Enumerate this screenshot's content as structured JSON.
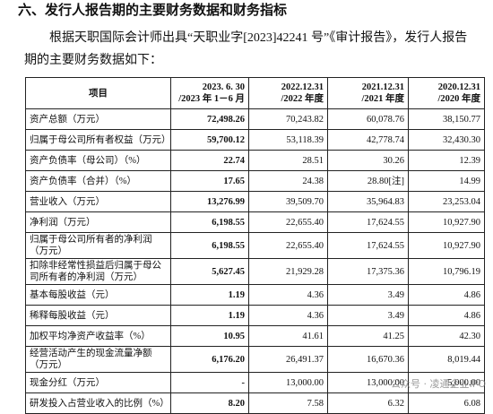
{
  "heading": "六、发行人报告期的主要财务数据和财务指标",
  "intro": "根据天职国际会计师出具“天职业字[2023]42241 号”《审计报告》，发行人报告期的主要财务数据如下：",
  "table": {
    "header": [
      [
        "项目"
      ],
      [
        "2023. 6. 30",
        "/2023 年 1－6 月"
      ],
      [
        "2022.12.31",
        "/2022 年度"
      ],
      [
        "2021.12.31",
        "/2021 年度"
      ],
      [
        "2020.12.31",
        "/2020 年度"
      ]
    ],
    "rows": [
      [
        "资产总额（万元）",
        "72,498.26",
        "70,243.82",
        "60,078.76",
        "38,150.77"
      ],
      [
        "归属于母公司所有者权益（万元）",
        "59,700.12",
        "53,118.39",
        "42,778.74",
        "32,430.30"
      ],
      [
        "资产负债率（母公司）（%）",
        "22.74",
        "28.51",
        "30.26",
        "12.39"
      ],
      [
        "资产负债率（合并）（%）",
        "17.65",
        "24.38",
        "28.80[注]",
        "14.99"
      ],
      [
        "营业收入（万元）",
        "13,276.99",
        "39,509.70",
        "35,964.83",
        "23,253.04"
      ],
      [
        "净利润（万元）",
        "6,198.55",
        "22,655.40",
        "17,624.55",
        "10,927.90"
      ],
      [
        "归属于母公司所有者的净利润（万元）",
        "6,198.55",
        "22,655.40",
        "17,624.55",
        "10,927.90"
      ],
      [
        "扣除非经常性损益后归属于母公司所有者的净利润（万元）",
        "5,627.45",
        "21,929.28",
        "17,375.36",
        "10,796.19"
      ],
      [
        "基本每股收益（元）",
        "1.19",
        "4.36",
        "3.49",
        "4.86"
      ],
      [
        "稀释每股收益（元）",
        "1.19",
        "4.36",
        "3.49",
        "4.86"
      ],
      [
        "加权平均净资产收益率（%）",
        "10.95",
        "41.61",
        "41.25",
        "42.30"
      ],
      [
        "经营活动产生的现金流量净额（万元）",
        "6,176.20",
        "26,491.37",
        "16,670.36",
        "8,019.44"
      ],
      [
        "现金分红（万元）",
        "-",
        "13,000.00",
        "13,000.00",
        "5,000.00"
      ],
      [
        "研发投入占营业收入的比例（%）",
        "8.20",
        "7.58",
        "6.32",
        "6.08"
      ]
    ]
  },
  "watermark": "公众号 · 凌通企业IPO"
}
